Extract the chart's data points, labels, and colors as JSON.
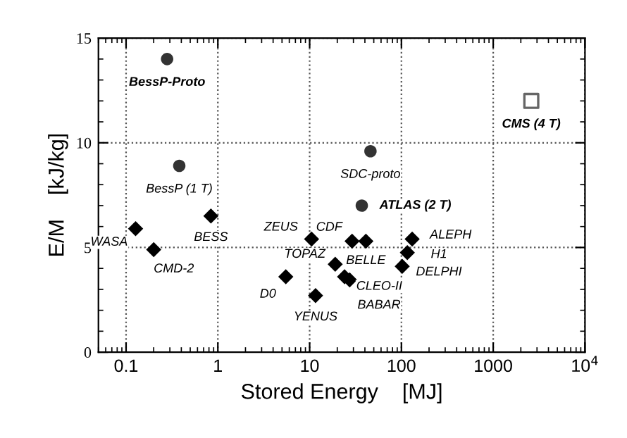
{
  "chart_data": {
    "type": "scatter",
    "xlabel": "Stored Energy    [MJ]",
    "ylabel": "E/M    [kJ/kg]",
    "log": "x",
    "xlim": [
      0.05,
      10000
    ],
    "xticks": [
      0.1,
      1,
      10,
      100,
      1000,
      {
        "value": 10000,
        "label": "10$^{4}$"
      }
    ],
    "ylim": [
      0,
      15
    ],
    "yticks": [
      0,
      5,
      10,
      15
    ],
    "grid": true,
    "series": [
      {
        "marker": "circle",
        "color": "#333333",
        "x": [
          0.28,
          0.38,
          46,
          37
        ],
        "values": [
          14.0,
          8.9,
          9.6,
          7.0
        ]
      },
      {
        "marker": "square",
        "color": "#666666",
        "x": [
          2600
        ],
        "values": [
          12.0
        ]
      },
      {
        "marker": "diamond",
        "color": "#000000",
        "x": [
          0.127,
          0.2,
          0.84,
          10.5,
          19,
          5.5,
          11.6,
          29,
          41,
          24,
          27.3,
          131,
          116,
          102
        ],
        "values": [
          5.9,
          4.9,
          6.5,
          5.4,
          4.2,
          3.6,
          2.7,
          5.3,
          5.3,
          3.6,
          3.45,
          5.4,
          4.75,
          4.1
        ]
      }
    ],
    "annotations": [
      {
        "text": "BessP-Proto",
        "x": 0.28,
        "y": 14.0
      },
      {
        "text": "BessP (1 T)",
        "x": 0.38,
        "y": 8.9
      },
      {
        "text": "SDC-proto",
        "x": 46,
        "y": 9.6
      },
      {
        "text": "ATLAS (2 T)",
        "x": 37,
        "y": 7.0
      },
      {
        "text": "CMS (4 T)",
        "x": 2600,
        "y": 12.0
      },
      {
        "text": "WASA",
        "x": 0.127,
        "y": 5.9
      },
      {
        "text": "CMD-2",
        "x": 0.2,
        "y": 4.9
      },
      {
        "text": "BESS",
        "x": 0.84,
        "y": 6.5
      },
      {
        "text": "ZEUS",
        "x": 10.5,
        "y": 5.4
      },
      {
        "text": "TOPAZ",
        "x": 19,
        "y": 4.2
      },
      {
        "text": "D0",
        "x": 5.5,
        "y": 3.6
      },
      {
        "text": "YENUS",
        "x": 11.6,
        "y": 2.7
      },
      {
        "text": "CDF",
        "x": 29,
        "y": 5.3
      },
      {
        "text": "BELLE",
        "x": 41,
        "y": 5.3
      },
      {
        "text": "CLEO-II",
        "x": 24,
        "y": 3.6
      },
      {
        "text": "BABAR",
        "x": 27.3,
        "y": 3.45
      },
      {
        "text": "ALEPH",
        "x": 131,
        "y": 5.4
      },
      {
        "text": "H1",
        "x": 116,
        "y": 4.75
      },
      {
        "text": "DELPHI",
        "x": 102,
        "y": 4.1
      }
    ]
  }
}
